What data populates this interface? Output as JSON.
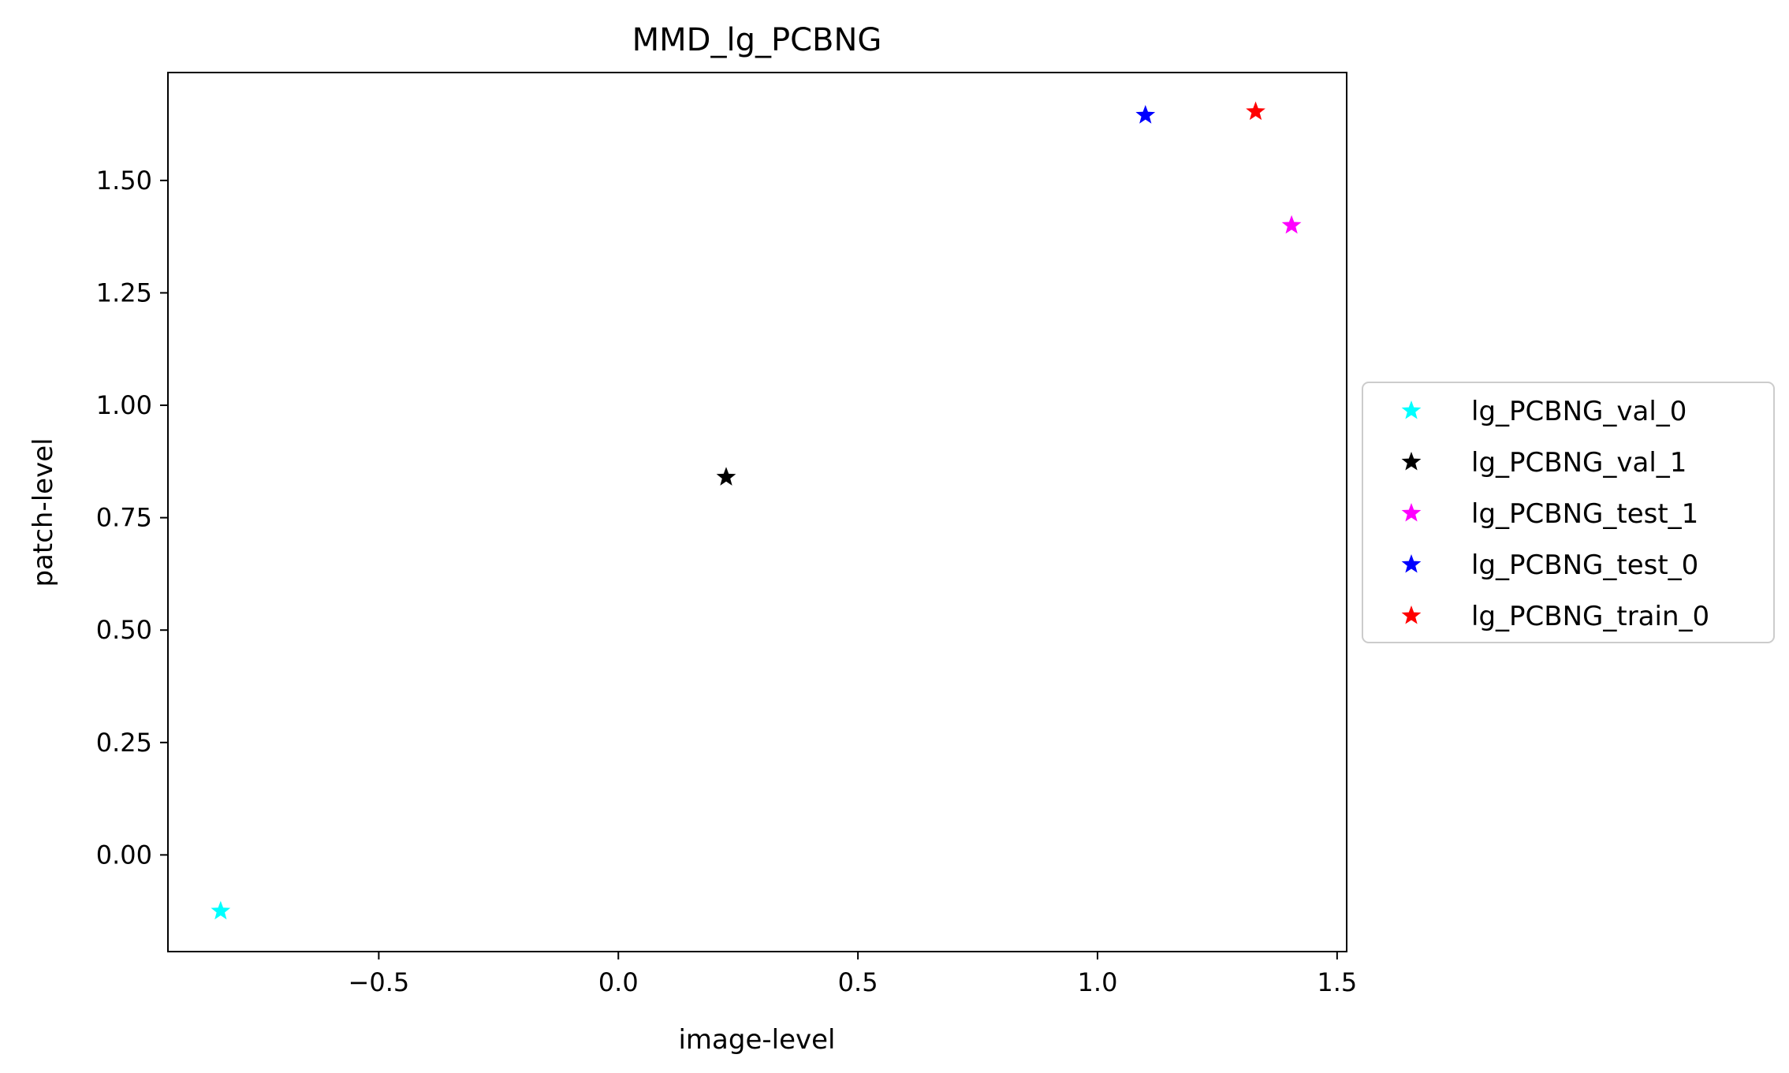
{
  "chart_data": {
    "type": "scatter",
    "title": "MMD_lg_PCBNG",
    "xlabel": "image-level",
    "ylabel": "patch-level",
    "xlim": [
      -0.94,
      1.52
    ],
    "ylim": [
      -0.215,
      1.74
    ],
    "xticks": [
      -0.5,
      0.0,
      0.5,
      1.0,
      1.5
    ],
    "xtick_labels": [
      "−0.5",
      "0.0",
      "0.5",
      "1.0",
      "1.5"
    ],
    "yticks": [
      0.0,
      0.25,
      0.5,
      0.75,
      1.0,
      1.25,
      1.5
    ],
    "ytick_labels": [
      "0.00",
      "0.25",
      "0.50",
      "0.75",
      "1.00",
      "1.25",
      "1.50"
    ],
    "grid": false,
    "legend_position": "center-right-outside",
    "marker": "star",
    "series": [
      {
        "name": "lg_PCBNG_val_0",
        "color": "#00ffff",
        "x": [
          -0.83
        ],
        "y": [
          -0.125
        ]
      },
      {
        "name": "lg_PCBNG_val_1",
        "color": "#000000",
        "x": [
          0.225
        ],
        "y": [
          0.84
        ]
      },
      {
        "name": "lg_PCBNG_test_1",
        "color": "#ff00ff",
        "x": [
          1.405
        ],
        "y": [
          1.4
        ]
      },
      {
        "name": "lg_PCBNG_test_0",
        "color": "#0000ff",
        "x": [
          1.1
        ],
        "y": [
          1.645
        ]
      },
      {
        "name": "lg_PCBNG_train_0",
        "color": "#ff0000",
        "x": [
          1.33
        ],
        "y": [
          1.653
        ]
      }
    ]
  }
}
